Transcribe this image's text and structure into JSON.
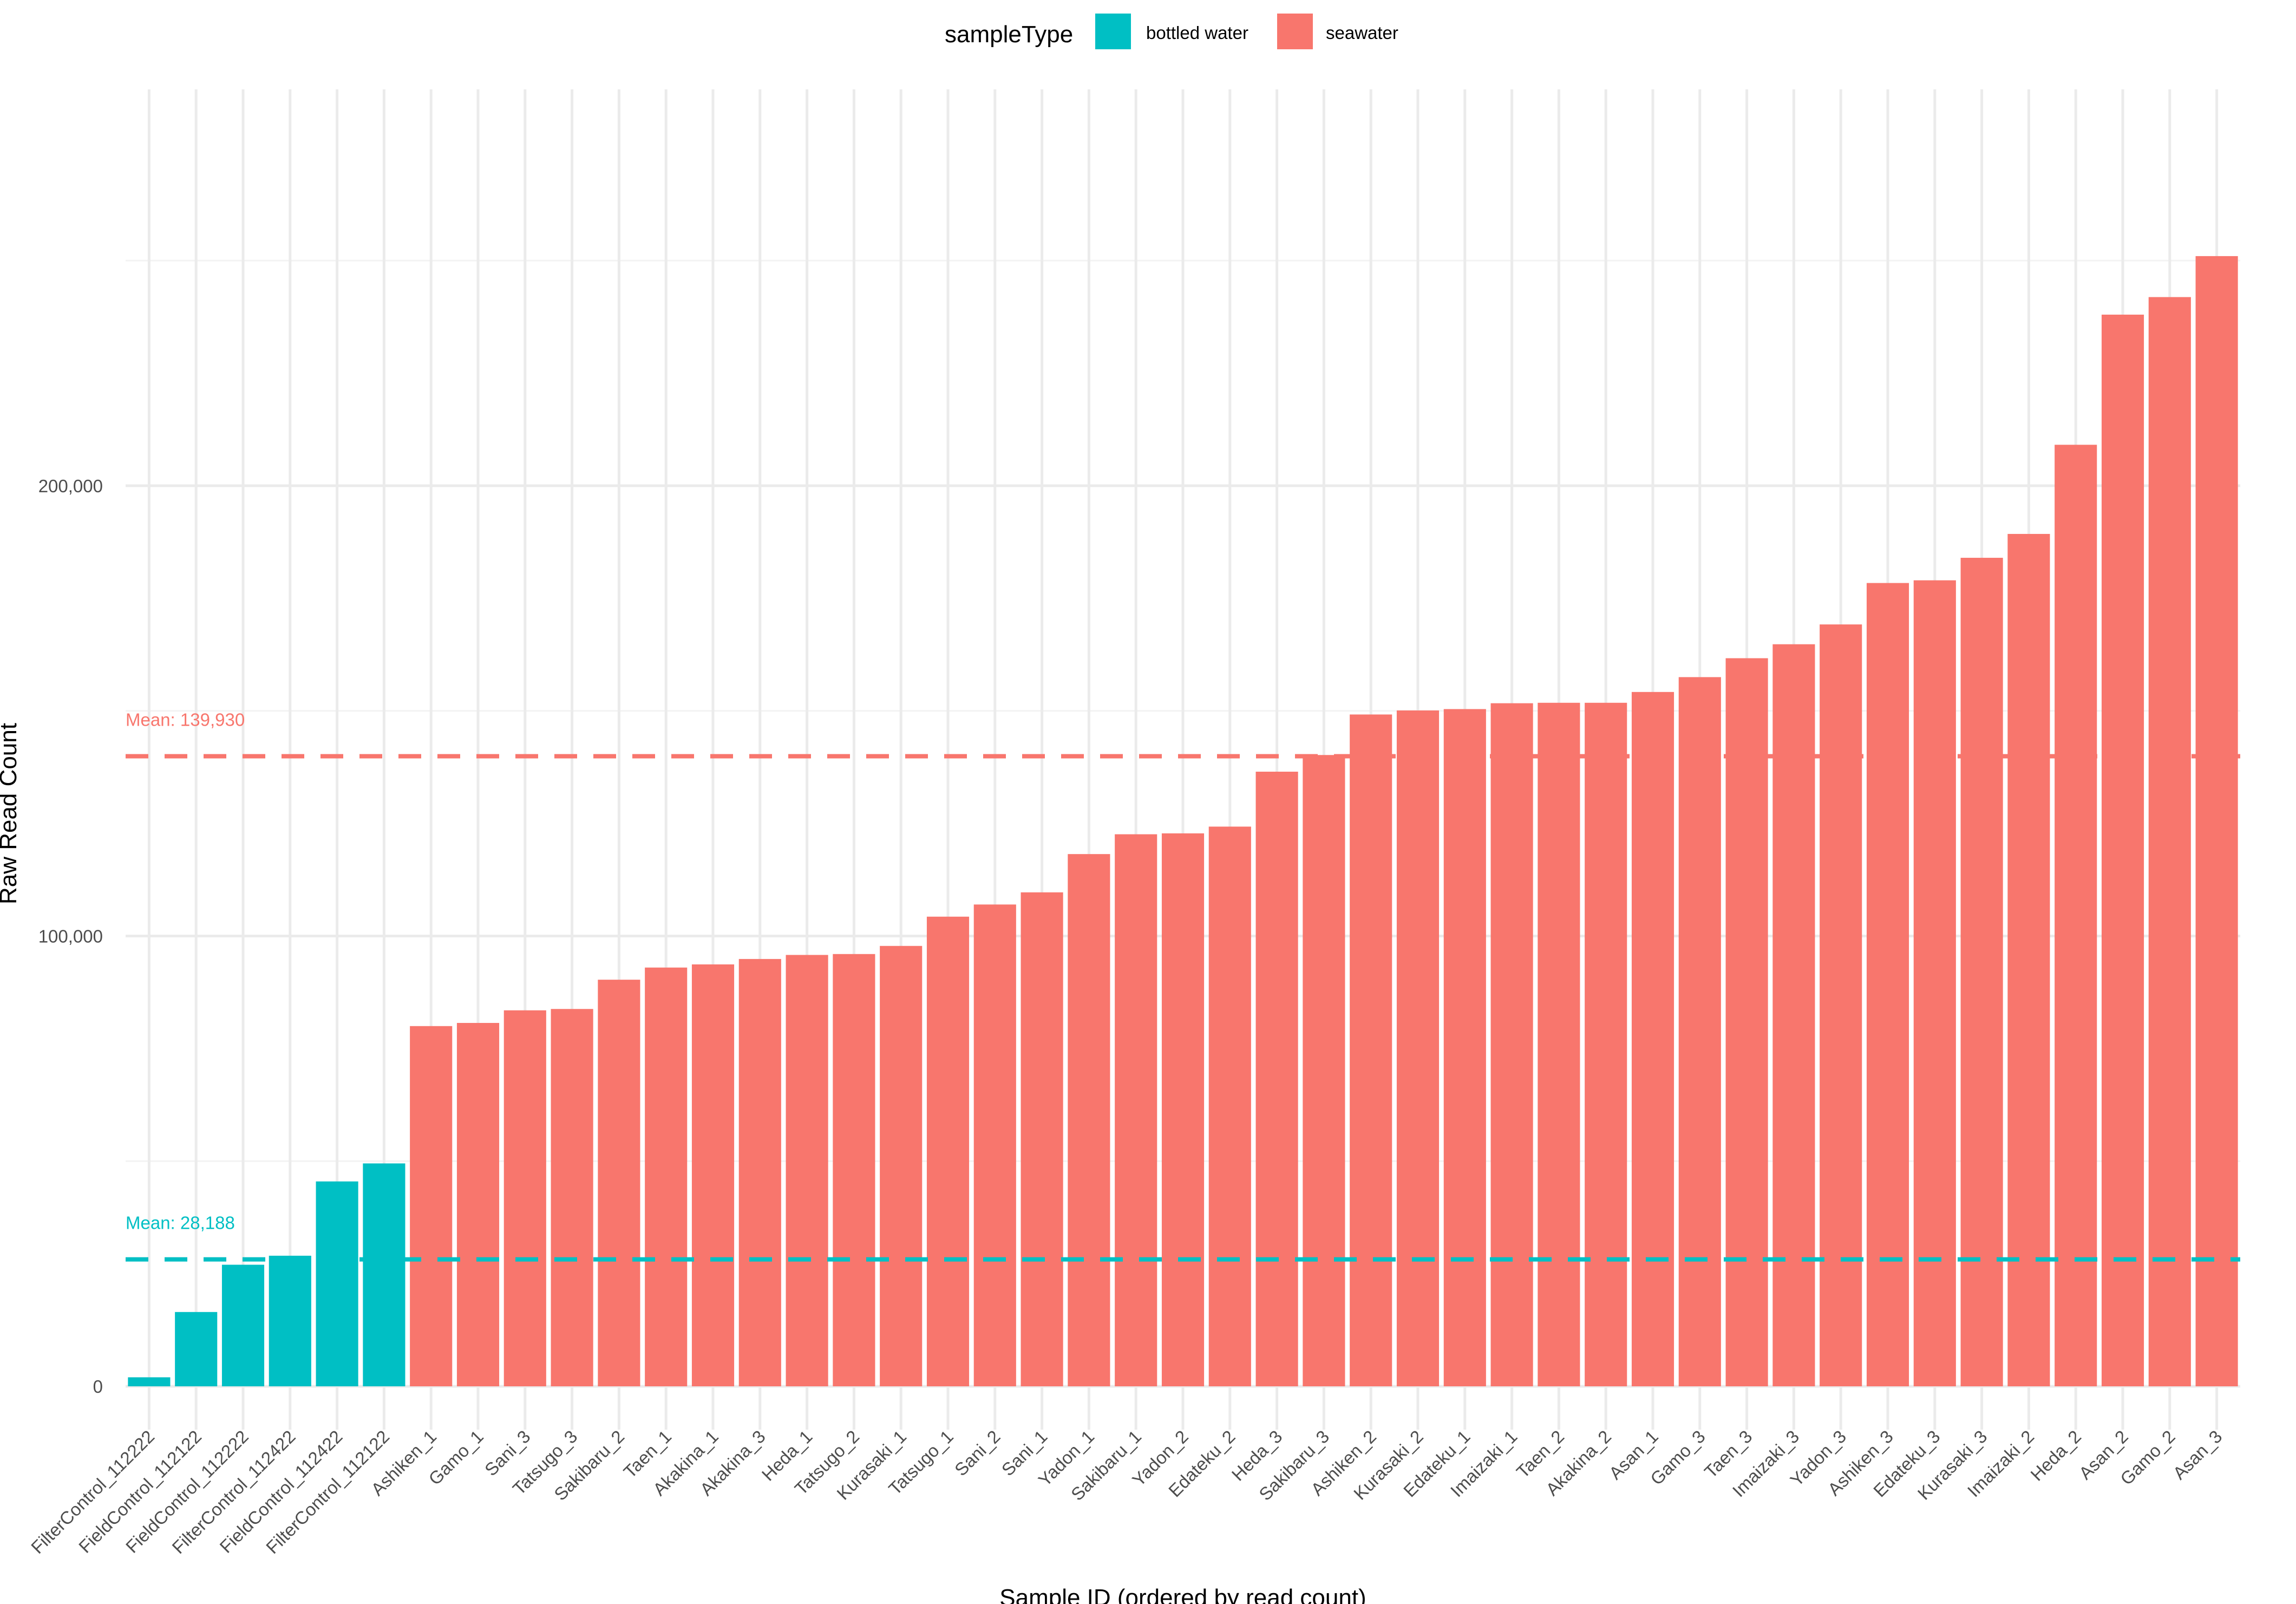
{
  "chart_data": {
    "type": "bar",
    "title": "",
    "xlabel": "Sample ID (ordered by read count)",
    "ylabel": "Raw Read Count",
    "ylim": [
      -10000,
      290000
    ],
    "yticks": [
      0,
      100000,
      200000
    ],
    "ytick_labels": [
      "0",
      "100,000",
      "200,000"
    ],
    "grid": true,
    "legend": {
      "title": "sampleType",
      "position": "top",
      "entries": [
        {
          "label": "bottled water",
          "color": "#00BFC4"
        },
        {
          "label": "seawater",
          "color": "#F8766D"
        }
      ]
    },
    "categories": [
      "FilterControl_112222",
      "FieldControl_112122",
      "FieldControl_112222",
      "FilterControl_112422",
      "FieldControl_112422",
      "FilterControl_112122",
      "Ashiken_1",
      "Gamo_1",
      "Sani_3",
      "Tatsugo_3",
      "Sakibaru_2",
      "Taen_1",
      "Akakina_1",
      "Akakina_3",
      "Heda_1",
      "Tatsugo_2",
      "Kurasaki_1",
      "Tatsugo_1",
      "Sani_2",
      "Sani_1",
      "Yadon_1",
      "Sakibaru_1",
      "Yadon_2",
      "Edateku_2",
      "Heda_3",
      "Sakibaru_3",
      "Ashiken_2",
      "Kurasaki_2",
      "Edateku_1",
      "Imaizaki_1",
      "Taen_2",
      "Akakina_2",
      "Asan_1",
      "Gamo_3",
      "Taen_3",
      "Imaizaki_3",
      "Yadon_3",
      "Ashiken_3",
      "Edateku_3",
      "Kurasaki_3",
      "Imaizaki_2",
      "Heda_2",
      "Asan_2",
      "Gamo_2",
      "Asan_3"
    ],
    "sample_types": [
      "bottled water",
      "bottled water",
      "bottled water",
      "bottled water",
      "bottled water",
      "bottled water",
      "seawater",
      "seawater",
      "seawater",
      "seawater",
      "seawater",
      "seawater",
      "seawater",
      "seawater",
      "seawater",
      "seawater",
      "seawater",
      "seawater",
      "seawater",
      "seawater",
      "seawater",
      "seawater",
      "seawater",
      "seawater",
      "seawater",
      "seawater",
      "seawater",
      "seawater",
      "seawater",
      "seawater",
      "seawater",
      "seawater",
      "seawater",
      "seawater",
      "seawater",
      "seawater",
      "seawater",
      "seawater",
      "seawater",
      "seawater",
      "seawater",
      "seawater",
      "seawater",
      "seawater",
      "seawater"
    ],
    "values": [
      2000,
      16500,
      27000,
      29000,
      45500,
      49500,
      80000,
      80700,
      83500,
      83800,
      90300,
      93000,
      93700,
      94900,
      95800,
      96000,
      97800,
      104300,
      107000,
      109700,
      118200,
      122600,
      122800,
      124300,
      136500,
      140200,
      149200,
      150100,
      150400,
      151700,
      151800,
      151800,
      154200,
      157500,
      161700,
      164800,
      169200,
      178400,
      179000,
      184000,
      189300,
      209100,
      238000,
      241900,
      251000
    ],
    "mean_lines": [
      {
        "label": "Mean: 139,930",
        "value": 139930,
        "sample_type": "seawater",
        "color": "#F8766D"
      },
      {
        "label": "Mean: 28,188",
        "value": 28188,
        "sample_type": "bottled water",
        "color": "#00BFC4"
      }
    ]
  }
}
